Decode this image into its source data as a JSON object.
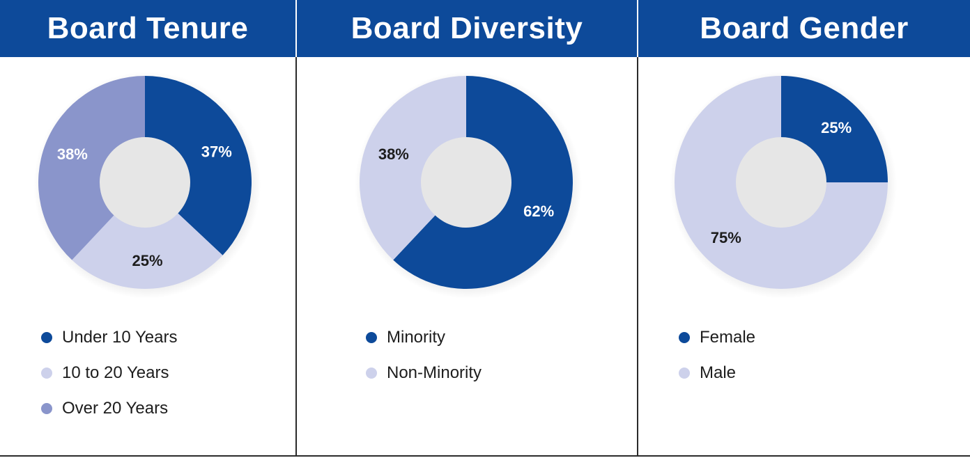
{
  "chart_data": [
    {
      "type": "pie",
      "title": "Board Tenure",
      "categories": [
        "Under 10 Years",
        "10 to 20 Years",
        "Over 20 Years"
      ],
      "values": [
        37,
        25,
        38
      ],
      "labels": [
        "37%",
        "25%",
        "38%"
      ],
      "colors": [
        "#0d4a9a",
        "#cdd1eb",
        "#8a95cb"
      ],
      "label_colors": [
        "#ffffff",
        "#1d1d1d",
        "#ffffff"
      ],
      "legend": "bottom"
    },
    {
      "type": "pie",
      "title": "Board Diversity",
      "categories": [
        "Minority",
        "Non-Minority"
      ],
      "values": [
        62,
        38
      ],
      "labels": [
        "62%",
        "38%"
      ],
      "colors": [
        "#0d4a9a",
        "#cdd1eb"
      ],
      "label_colors": [
        "#ffffff",
        "#1d1d1d"
      ],
      "legend": "bottom"
    },
    {
      "type": "pie",
      "title": "Board Gender",
      "categories": [
        "Female",
        "Male"
      ],
      "values": [
        25,
        75
      ],
      "labels": [
        "25%",
        "75%"
      ],
      "colors": [
        "#0d4a9a",
        "#cdd1eb"
      ],
      "label_colors": [
        "#ffffff",
        "#1d1d1d"
      ],
      "legend": "bottom"
    }
  ]
}
